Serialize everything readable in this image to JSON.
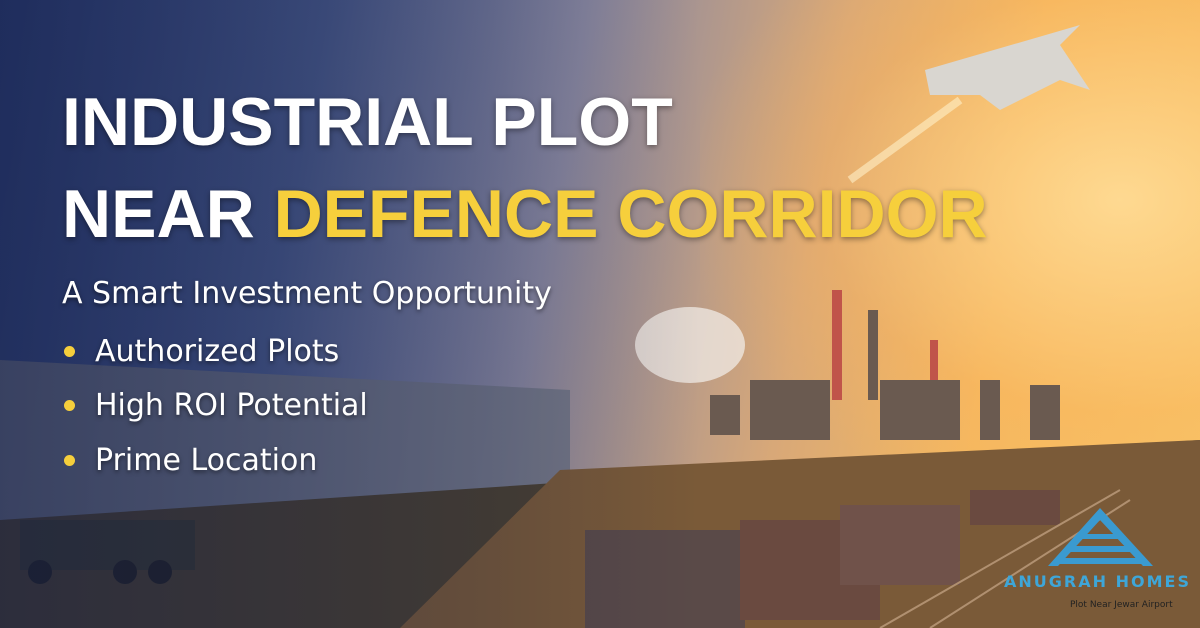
{
  "headline": {
    "line1": "INDUSTRIAL PLOT",
    "line2_prefix": "NEAR ",
    "line2_highlight": "DEFENCE CORRIDOR"
  },
  "subtitle": "A Smart Investment Opportunity",
  "bullets": [
    "Authorized Plots",
    "High ROI Potential",
    "Prime Location"
  ],
  "logo": {
    "name": "ANUGRAH HOMES",
    "tagline": "Plot Near Jewar Airport"
  },
  "colors": {
    "highlight": "#f6cf3c",
    "logo": "#3ea6d8"
  }
}
